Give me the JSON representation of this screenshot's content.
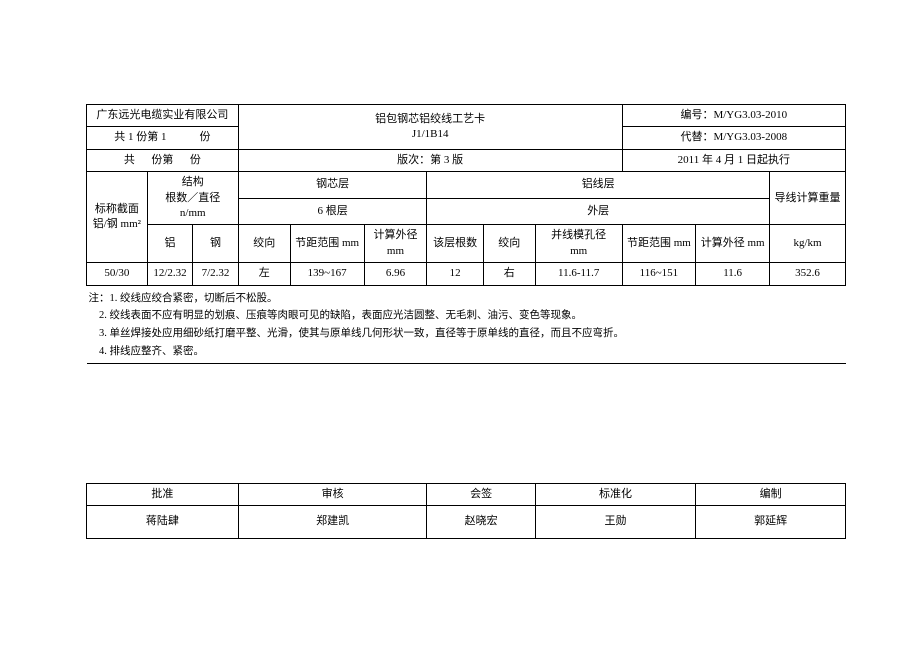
{
  "header": {
    "company": "广东远光电缆实业有限公司",
    "title_line1": "铝包钢芯铝绞线工艺卡",
    "title_line2": "J1/1B14",
    "code_label": "编号：",
    "code_value": "M/YG3.03-2010",
    "pages_line1_prefix": "共 1 份第 1",
    "pages_line1_suffix": "份",
    "replace_label": "代替：",
    "replace_value": "M/YG3.03-2008",
    "pages_line2_a": "共",
    "pages_line2_b": "份第",
    "pages_line2_c": "份",
    "version_label": "版次：第 3 版",
    "effective": "2011 年 4 月 1 日起执行"
  },
  "cols": {
    "nominal": "标称截面铝/钢 mm²",
    "struct_label": "结构",
    "struct_sub": "根数／直径 n/mm",
    "al": "铝",
    "steel": "钢",
    "core_layer": "钢芯层",
    "core_count": "6 根层",
    "al_layer": "铝线层",
    "outer": "外层",
    "dir": "绞向",
    "pitch": "节距范围 mm",
    "calc_od": "计算外径 mm",
    "layer_count": "该层根数",
    "die": "并线模孔径",
    "die_unit": "mm",
    "weight_label": "导线计算重量",
    "weight_unit": "kg/km"
  },
  "row": {
    "nominal": "50/30",
    "al": "12/2.32",
    "steel": "7/2.32",
    "dir1": "左",
    "pitch1": "139~167",
    "od1": "6.96",
    "count": "12",
    "dir2": "右",
    "die": "11.6-11.7",
    "pitch2": "116~151",
    "od2": "11.6",
    "weight": "352.6"
  },
  "notes": {
    "prefix": "注：",
    "n1": "1. 绞线应绞合紧密，切断后不松股。",
    "n2": "2. 绞线表面不应有明显的划痕、压痕等肉眼可见的缺陷，表面应光洁圆整、无毛刺、油污、变色等现象。",
    "n3": "3. 单丝焊接处应用细砂纸打磨平整、光滑，使其与原单线几何形状一致，直径等于原单线的直径，而且不应弯折。",
    "n4": "4. 排线应整齐、紧密。"
  },
  "sign": {
    "approve": "批准",
    "review": "审核",
    "counter": "会签",
    "standard": "标准化",
    "compile": "编制",
    "approve_name": "蒋陆肆",
    "review_name": "郑建凯",
    "counter_name": "赵晓宏",
    "standard_name": "王勋",
    "compile_name": "郭延辉"
  }
}
